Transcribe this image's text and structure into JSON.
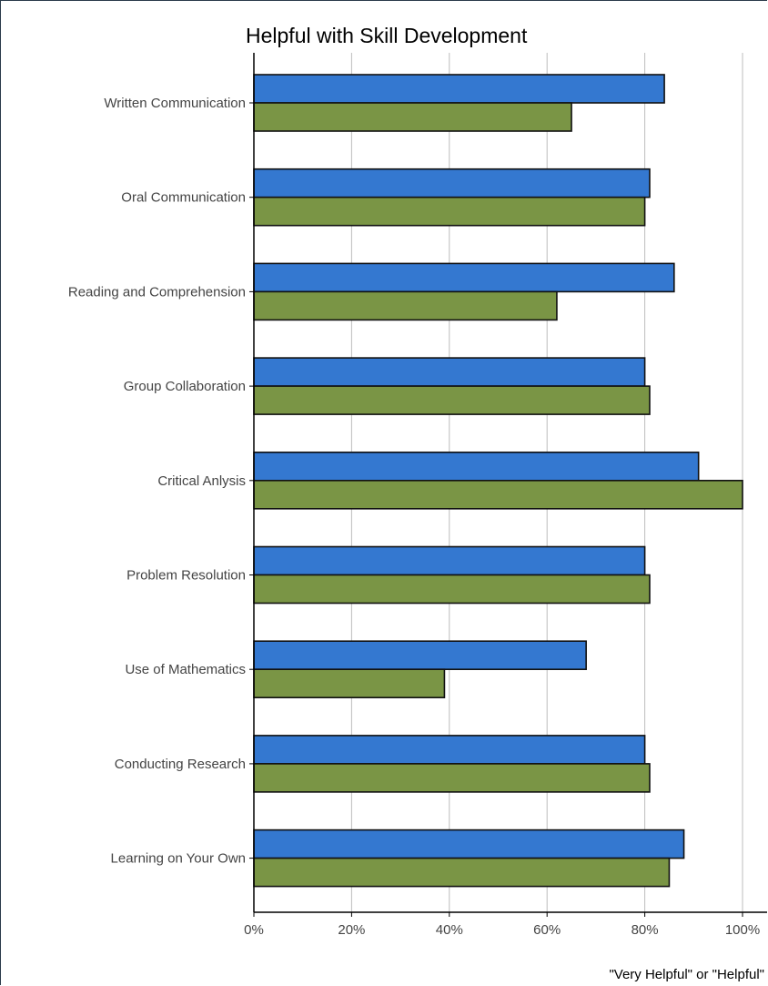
{
  "chart_data": {
    "type": "bar",
    "orientation": "horizontal",
    "title": "Helpful with Skill Development",
    "xlabel": "",
    "ylabel": "",
    "x_axis_note": "\"Very Helpful\" or \"Helpful\"",
    "xlim": [
      0,
      100
    ],
    "x_ticks": [
      0,
      20,
      40,
      60,
      80,
      100
    ],
    "x_tick_labels": [
      "0%",
      "20%",
      "40%",
      "60%",
      "80%",
      "100%"
    ],
    "grid": "vertical major lines",
    "legend": "none",
    "categories": [
      "Written Communication",
      "Oral Communication",
      "Reading and Comprehension",
      "Group Collaboration",
      "Critical Anlysis",
      "Problem Resolution",
      "Use of Mathematics",
      "Conducting Research",
      "Learning on Your Own"
    ],
    "series": [
      {
        "color": "#3478d0",
        "values": [
          84,
          81,
          86,
          80,
          91,
          80,
          68,
          80,
          88
        ]
      },
      {
        "color": "#7a9545",
        "values": [
          65,
          80,
          62,
          81,
          100,
          81,
          39,
          81,
          85
        ]
      }
    ]
  },
  "colors": {
    "bar_outline": "#111111",
    "grid": "#bdbdbd",
    "axis": "#000000"
  }
}
